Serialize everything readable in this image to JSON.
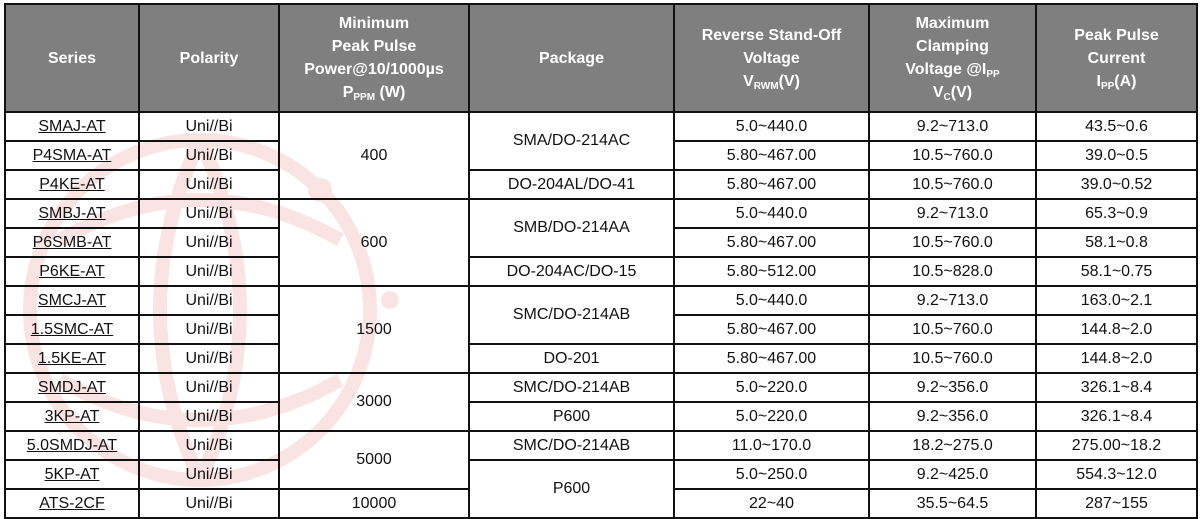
{
  "header": {
    "series": "Series",
    "polarity": "Polarity",
    "power": {
      "l1": "Minimum",
      "l2": "Peak Pulse",
      "l3": "Power@10/1000µs",
      "sym": "P",
      "sub": "PPM",
      "unit": " (W)"
    },
    "package": "Package",
    "vrwm": {
      "l1": "Reverse Stand-Off",
      "l2": "Voltage",
      "sym": "V",
      "sub": "RWM",
      "unit": "(V)"
    },
    "vc": {
      "l1": "Maximum",
      "l2": "Clamping",
      "l3": "Voltage @I",
      "l3sub": "PP",
      "sym": "V",
      "sub": "C",
      "unit": "(V)"
    },
    "ipp": {
      "l1": "Peak Pulse",
      "l2": "Current",
      "sym": "I",
      "sub": "PP",
      "unit": "(A)"
    }
  },
  "rows": [
    {
      "series": "SMAJ-AT",
      "polarity": "Uni//Bi",
      "vrwm": "5.0~440.0",
      "vc": "9.2~713.0",
      "ipp": "43.5~0.6"
    },
    {
      "series": "P4SMA-AT",
      "polarity": "Uni//Bi",
      "vrwm": "5.80~467.00",
      "vc": "10.5~760.0",
      "ipp": "39.0~0.5"
    },
    {
      "series": "P4KE-AT",
      "polarity": "Uni//Bi",
      "vrwm": "5.80~467.00",
      "vc": "10.5~760.0",
      "ipp": "39.0~0.52"
    },
    {
      "series": "SMBJ-AT",
      "polarity": "Uni//Bi",
      "vrwm": "5.0~440.0",
      "vc": "9.2~713.0",
      "ipp": "65.3~0.9"
    },
    {
      "series": "P6SMB-AT",
      "polarity": "Uni//Bi",
      "vrwm": "5.80~467.00",
      "vc": "10.5~760.0",
      "ipp": "58.1~0.8"
    },
    {
      "series": "P6KE-AT",
      "polarity": "Uni//Bi",
      "vrwm": "5.80~512.00",
      "vc": "10.5~828.0",
      "ipp": "58.1~0.75"
    },
    {
      "series": "SMCJ-AT",
      "polarity": "Uni//Bi",
      "vrwm": "5.0~440.0",
      "vc": "9.2~713.0",
      "ipp": "163.0~2.1"
    },
    {
      "series": "1.5SMC-AT",
      "polarity": "Uni//Bi",
      "vrwm": "5.80~467.00",
      "vc": "10.5~760.0",
      "ipp": "144.8~2.0"
    },
    {
      "series": "1.5KE-AT",
      "polarity": "Uni//Bi",
      "vrwm": "5.80~467.00",
      "vc": "10.5~760.0",
      "ipp": "144.8~2.0"
    },
    {
      "series": "SMDJ-AT",
      "polarity": "Uni//Bi",
      "vrwm": "5.0~220.0",
      "vc": "9.2~356.0",
      "ipp": "326.1~8.4"
    },
    {
      "series": "3KP-AT",
      "polarity": "Uni//Bi",
      "vrwm": "5.0~220.0",
      "vc": "9.2~356.0",
      "ipp": "326.1~8.4"
    },
    {
      "series": "5.0SMDJ-AT",
      "polarity": "Uni//Bi",
      "vrwm": "11.0~170.0",
      "vc": "18.2~275.0",
      "ipp": "275.00~18.2"
    },
    {
      "series": "5KP-AT",
      "polarity": "Uni//Bi",
      "vrwm": "5.0~250.0",
      "vc": "9.2~425.0",
      "ipp": "554.3~12.0"
    },
    {
      "series": "ATS-2CF",
      "polarity": "Uni//Bi",
      "vrwm": "22~40",
      "vc": "35.5~64.5",
      "ipp": "287~155"
    }
  ],
  "power_groups": [
    "400",
    "600",
    "1500",
    "3000",
    "5000",
    "10000"
  ],
  "package_groups": [
    "SMA/DO-214AC",
    "DO-204AL/DO-41",
    "SMB/DO-214AA",
    "DO-204AC/DO-15",
    "SMC/DO-214AB",
    "DO-201",
    "SMC/DO-214AB",
    "P600",
    "SMC/DO-214AB",
    "P600"
  ],
  "colors": {
    "header_bg": "#7f7f7f",
    "header_text": "#ffffff",
    "watermark": "#e05050"
  }
}
